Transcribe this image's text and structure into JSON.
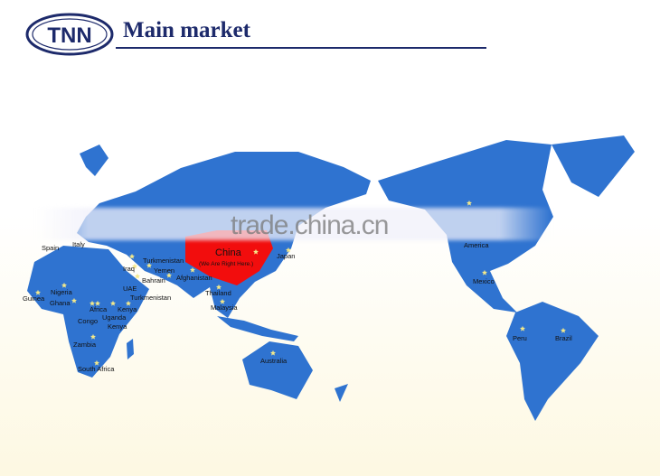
{
  "header": {
    "logo_text": "TNN",
    "title": "Main market"
  },
  "watermark": "trade.china.cn",
  "colors": {
    "land": "#2f73d0",
    "highlight": "#f20d0d",
    "marker": "#f4e98a",
    "header": "#1d2a6b"
  },
  "highlight": {
    "country": "China",
    "note": "(We Are Right Here.)"
  },
  "markets": [
    "Spain",
    "Italy",
    "Turkmenistan",
    "Iraq",
    "Yemen",
    "Bahrain",
    "Afghanistan",
    "UAE",
    "Turkmenistan",
    "Thailand",
    "Malaysia",
    "Japan",
    "Nigeria",
    "Guinea",
    "Ghana",
    "Africa",
    "Kenya",
    "Congo",
    "Uganda",
    "Kenya",
    "Zambia",
    "South Africa",
    "Australia",
    "America",
    "Mexico",
    "Peru",
    "Brazil"
  ]
}
